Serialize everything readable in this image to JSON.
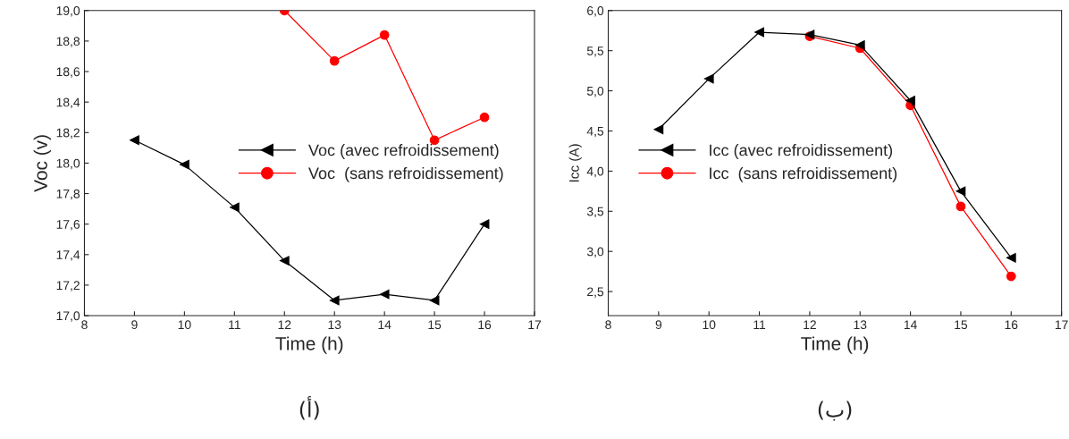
{
  "chart_data": [
    {
      "type": "line",
      "xlabel": "Time (h)",
      "ylabel": "Voc (v)",
      "xlim": [
        8,
        17
      ],
      "xticks": [
        8,
        9,
        10,
        11,
        12,
        13,
        14,
        15,
        16,
        17
      ],
      "ylim": [
        17.0,
        19.0
      ],
      "yticks": [
        {
          "value": 17.0,
          "label": "17,0"
        },
        {
          "value": 17.2,
          "label": "17,2"
        },
        {
          "value": 17.4,
          "label": "17,4"
        },
        {
          "value": 17.6,
          "label": "17,6"
        },
        {
          "value": 17.8,
          "label": "17,8"
        },
        {
          "value": 18.0,
          "label": "18,0"
        },
        {
          "value": 18.2,
          "label": "18,2"
        },
        {
          "value": 18.4,
          "label": "18,4"
        },
        {
          "value": 18.6,
          "label": "18,6"
        },
        {
          "value": 18.8,
          "label": "18,8"
        },
        {
          "value": 19.0,
          "label": "19,0"
        }
      ],
      "series": [
        {
          "name": "Voc (avec refroidissement)",
          "color": "#000000",
          "marker": "triangle",
          "x": [
            9,
            10,
            11,
            12,
            13,
            14,
            15,
            16
          ],
          "values": [
            18.15,
            17.99,
            17.71,
            17.36,
            17.1,
            17.14,
            17.1,
            17.6
          ]
        },
        {
          "name": "Voc  (sans refroidissement)",
          "color": "#ff0000",
          "marker": "circle",
          "x": [
            12,
            13,
            14,
            15,
            16
          ],
          "values": [
            19.0,
            18.67,
            18.84,
            18.15,
            18.3
          ]
        }
      ],
      "legend": "right",
      "grid": false,
      "annotations": [
        "(أ)"
      ]
    },
    {
      "type": "line",
      "xlabel": "Time (h)",
      "ylabel": "Icc (A)",
      "xlim": [
        8,
        17
      ],
      "xticks": [
        8,
        9,
        10,
        11,
        12,
        13,
        14,
        15,
        16,
        17
      ],
      "ylim": [
        2.2,
        6.0
      ],
      "yticks": [
        {
          "value": 2.5,
          "label": "2,5"
        },
        {
          "value": 3.0,
          "label": "3,0"
        },
        {
          "value": 3.5,
          "label": "3,5"
        },
        {
          "value": 4.0,
          "label": "4,0"
        },
        {
          "value": 4.5,
          "label": "4,5"
        },
        {
          "value": 5.0,
          "label": "5,0"
        },
        {
          "value": 5.5,
          "label": "5,5"
        },
        {
          "value": 6.0,
          "label": "6,0"
        }
      ],
      "series": [
        {
          "name": "Icc (avec refroidissement)",
          "color": "#000000",
          "marker": "triangle",
          "x": [
            9,
            10,
            11,
            12,
            13,
            14,
            15,
            16
          ],
          "values": [
            4.52,
            5.15,
            5.73,
            5.7,
            5.57,
            4.88,
            3.75,
            2.92
          ]
        },
        {
          "name": "Icc  (sans refroidissement)",
          "color": "#ff0000",
          "marker": "circle",
          "x": [
            12,
            13,
            14,
            15,
            16
          ],
          "values": [
            5.68,
            5.53,
            4.82,
            3.56,
            2.69
          ]
        }
      ],
      "legend": "left",
      "grid": false,
      "annotations": [
        "(ب)"
      ]
    }
  ]
}
